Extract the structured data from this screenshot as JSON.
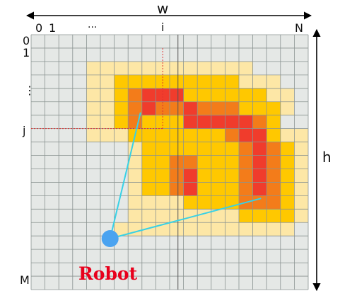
{
  "labels": {
    "w": "w",
    "h": "h",
    "col_0": "0",
    "col_1": "1",
    "col_dots": "···",
    "col_i": "i",
    "col_N": "N",
    "row_0": "0",
    "row_1": "1",
    "row_dots": "⋮",
    "row_j": "j",
    "row_M": "M",
    "robot": "Robot"
  },
  "colors": {
    "grid_bg": "#e5e8e6",
    "grid_line": "#8a9391",
    "zone_light": "#fde7a6",
    "zone_yellow": "#ffc800",
    "zone_orange": "#f37c1a",
    "zone_red": "#f03c2c",
    "ray": "#38d1e6",
    "robot": "#4aa3f0",
    "marker": "#e03030"
  },
  "grid": {
    "columns": 20,
    "rows": 19
  },
  "robot_position": {
    "col": 5.7,
    "row": 15.2
  },
  "rays_to": [
    {
      "col": 7.9,
      "row": 5.8
    },
    {
      "col": 16.6,
      "row": 12.2
    }
  ],
  "marker": {
    "col": 9,
    "row": 7
  },
  "cells": {
    "light": [
      [
        4,
        2
      ],
      [
        5,
        2
      ],
      [
        6,
        2
      ],
      [
        7,
        2
      ],
      [
        8,
        2
      ],
      [
        9,
        2
      ],
      [
        10,
        2
      ],
      [
        11,
        2
      ],
      [
        12,
        2
      ],
      [
        13,
        2
      ],
      [
        14,
        2
      ],
      [
        15,
        2
      ],
      [
        4,
        3
      ],
      [
        5,
        3
      ],
      [
        6,
        3
      ],
      [
        7,
        3
      ],
      [
        8,
        3
      ],
      [
        15,
        3
      ],
      [
        16,
        3
      ],
      [
        17,
        3
      ],
      [
        4,
        4
      ],
      [
        5,
        4
      ],
      [
        17,
        4
      ],
      [
        18,
        4
      ],
      [
        4,
        5
      ],
      [
        5,
        5
      ],
      [
        18,
        5
      ],
      [
        4,
        6
      ],
      [
        5,
        6
      ],
      [
        4,
        7
      ],
      [
        5,
        7
      ],
      [
        6,
        7
      ],
      [
        18,
        7
      ],
      [
        19,
        7
      ],
      [
        7,
        8
      ],
      [
        19,
        8
      ],
      [
        7,
        9
      ],
      [
        19,
        9
      ],
      [
        7,
        10
      ],
      [
        19,
        10
      ],
      [
        7,
        11
      ],
      [
        19,
        11
      ],
      [
        7,
        12
      ],
      [
        8,
        12
      ],
      [
        9,
        12
      ],
      [
        10,
        12
      ],
      [
        19,
        12
      ],
      [
        7,
        13
      ],
      [
        8,
        13
      ],
      [
        9,
        13
      ],
      [
        10,
        13
      ],
      [
        11,
        13
      ],
      [
        12,
        13
      ],
      [
        13,
        13
      ],
      [
        14,
        13
      ],
      [
        19,
        13
      ],
      [
        6,
        14
      ],
      [
        7,
        14
      ],
      [
        8,
        14
      ],
      [
        9,
        14
      ],
      [
        10,
        14
      ],
      [
        11,
        14
      ],
      [
        12,
        14
      ],
      [
        13,
        14
      ],
      [
        14,
        14
      ],
      [
        15,
        14
      ],
      [
        16,
        14
      ],
      [
        17,
        14
      ],
      [
        18,
        14
      ]
    ],
    "yellow": [
      [
        6,
        3
      ],
      [
        7,
        3
      ],
      [
        8,
        3
      ],
      [
        9,
        3
      ],
      [
        10,
        3
      ],
      [
        11,
        3
      ],
      [
        12,
        3
      ],
      [
        13,
        3
      ],
      [
        14,
        3
      ],
      [
        6,
        4
      ],
      [
        10,
        4
      ],
      [
        11,
        4
      ],
      [
        12,
        4
      ],
      [
        13,
        4
      ],
      [
        14,
        4
      ],
      [
        15,
        4
      ],
      [
        16,
        4
      ],
      [
        6,
        5
      ],
      [
        15,
        5
      ],
      [
        16,
        5
      ],
      [
        17,
        5
      ],
      [
        6,
        6
      ],
      [
        8,
        6
      ],
      [
        9,
        6
      ],
      [
        10,
        6
      ],
      [
        17,
        6
      ],
      [
        7,
        7
      ],
      [
        8,
        7
      ],
      [
        9,
        7
      ],
      [
        10,
        7
      ],
      [
        11,
        7
      ],
      [
        12,
        7
      ],
      [
        13,
        7
      ],
      [
        17,
        7
      ],
      [
        8,
        8
      ],
      [
        9,
        8
      ],
      [
        10,
        8
      ],
      [
        11,
        8
      ],
      [
        12,
        8
      ],
      [
        13,
        8
      ],
      [
        14,
        8
      ],
      [
        18,
        8
      ],
      [
        8,
        9
      ],
      [
        9,
        9
      ],
      [
        12,
        9
      ],
      [
        13,
        9
      ],
      [
        14,
        9
      ],
      [
        18,
        9
      ],
      [
        8,
        10
      ],
      [
        9,
        10
      ],
      [
        12,
        10
      ],
      [
        13,
        10
      ],
      [
        14,
        10
      ],
      [
        18,
        10
      ],
      [
        8,
        11
      ],
      [
        9,
        11
      ],
      [
        12,
        11
      ],
      [
        13,
        11
      ],
      [
        14,
        11
      ],
      [
        18,
        11
      ],
      [
        11,
        12
      ],
      [
        12,
        12
      ],
      [
        13,
        12
      ],
      [
        14,
        12
      ],
      [
        18,
        12
      ],
      [
        15,
        13
      ],
      [
        16,
        13
      ],
      [
        17,
        13
      ],
      [
        18,
        13
      ]
    ],
    "orange": [
      [
        7,
        4
      ],
      [
        8,
        4
      ],
      [
        9,
        4
      ],
      [
        7,
        5
      ],
      [
        9,
        5
      ],
      [
        10,
        5
      ],
      [
        11,
        5
      ],
      [
        12,
        5
      ],
      [
        13,
        5
      ],
      [
        14,
        5
      ],
      [
        7,
        6
      ],
      [
        11,
        6
      ],
      [
        12,
        6
      ],
      [
        13,
        6
      ],
      [
        14,
        6
      ],
      [
        15,
        6
      ],
      [
        16,
        6
      ],
      [
        14,
        7
      ],
      [
        15,
        7
      ],
      [
        16,
        7
      ],
      [
        15,
        8
      ],
      [
        16,
        8
      ],
      [
        17,
        8
      ],
      [
        15,
        9
      ],
      [
        17,
        9
      ],
      [
        15,
        10
      ],
      [
        17,
        10
      ],
      [
        15,
        11
      ],
      [
        17,
        11
      ],
      [
        15,
        12
      ],
      [
        16,
        12
      ],
      [
        17,
        12
      ],
      [
        10,
        9
      ],
      [
        11,
        9
      ],
      [
        10,
        10
      ],
      [
        10,
        11
      ]
    ],
    "red": [
      [
        8,
        4
      ],
      [
        9,
        4
      ],
      [
        10,
        4
      ],
      [
        8,
        5
      ],
      [
        11,
        5
      ],
      [
        11,
        6
      ],
      [
        12,
        6
      ],
      [
        13,
        6
      ],
      [
        14,
        6
      ],
      [
        15,
        6
      ],
      [
        15,
        7
      ],
      [
        16,
        7
      ],
      [
        16,
        8
      ],
      [
        16,
        9
      ],
      [
        16,
        10
      ],
      [
        16,
        11
      ],
      [
        11,
        10
      ],
      [
        11,
        11
      ]
    ]
  }
}
